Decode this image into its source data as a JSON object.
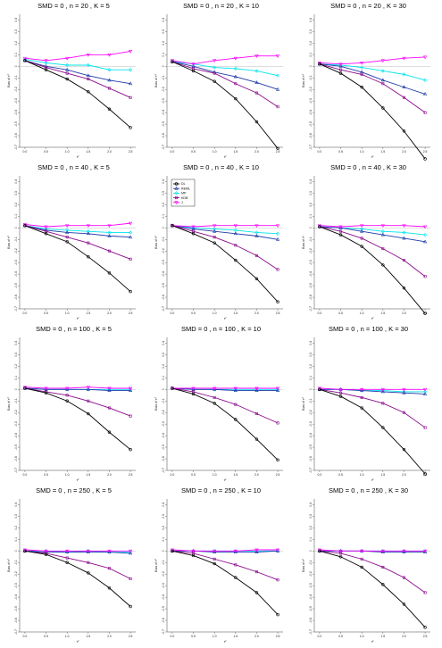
{
  "figure": {
    "ylabel": "Bias of τ²",
    "xlabel": "τ²",
    "x_ticks": [
      "0.0",
      "0.5",
      "1.0",
      "1.5",
      "2.0",
      "2.5"
    ],
    "y_ticks": [
      "0.4",
      "0.3",
      "0.2",
      "0.1",
      "0",
      "-0.1",
      "-0.2",
      "-0.3",
      "-0.4",
      "-0.5",
      "-0.6",
      "-0.7"
    ]
  },
  "legend": [
    {
      "name": "DL",
      "color": "#000000",
      "marker": "circle"
    },
    {
      "name": "REML",
      "color": "#1f3aa8",
      "marker": "triangle-up"
    },
    {
      "name": "MP",
      "color": "#00e5ee",
      "marker": "diamond"
    },
    {
      "name": "KDB",
      "color": "#8a0a8a",
      "marker": "square"
    },
    {
      "name": "J",
      "color": "#ff00ff",
      "marker": "triangle-down"
    }
  ],
  "chart_data": [
    {
      "type": "line",
      "title": "SMD = 0 , n = 20 , K = 5",
      "x": [
        0,
        0.5,
        1,
        1.5,
        2,
        2.5
      ],
      "ylim": [
        -0.7,
        0.45
      ],
      "series": [
        {
          "name": "DL",
          "values": [
            0.05,
            -0.03,
            -0.11,
            -0.22,
            -0.37,
            -0.53
          ]
        },
        {
          "name": "REML",
          "values": [
            0.05,
            0,
            -0.03,
            -0.08,
            -0.12,
            -0.15
          ]
        },
        {
          "name": "MP",
          "values": [
            0.06,
            0.03,
            0.01,
            0.01,
            -0.03,
            -0.03
          ]
        },
        {
          "name": "KDB",
          "values": [
            0.05,
            -0.01,
            -0.06,
            -0.11,
            -0.19,
            -0.27
          ]
        },
        {
          "name": "J",
          "values": [
            0.07,
            0.05,
            0.07,
            0.1,
            0.1,
            0.13
          ]
        }
      ]
    },
    {
      "type": "line",
      "title": "SMD = 0 , n = 20 , K = 10",
      "x": [
        0,
        0.5,
        1,
        1.5,
        2,
        2.5
      ],
      "ylim": [
        -0.7,
        0.45
      ],
      "series": [
        {
          "name": "DL",
          "values": [
            0.04,
            -0.04,
            -0.13,
            -0.28,
            -0.48,
            -0.71
          ]
        },
        {
          "name": "REML",
          "values": [
            0.04,
            0,
            -0.05,
            -0.09,
            -0.14,
            -0.2
          ]
        },
        {
          "name": "MP",
          "values": [
            0.04,
            0.02,
            -0.01,
            -0.02,
            -0.04,
            -0.08
          ]
        },
        {
          "name": "KDB",
          "values": [
            0.04,
            -0.02,
            -0.06,
            -0.15,
            -0.23,
            -0.35
          ]
        },
        {
          "name": "J",
          "values": [
            0.05,
            0.02,
            0.05,
            0.07,
            0.09,
            0.09
          ]
        }
      ]
    },
    {
      "type": "line",
      "title": "SMD = 0 , n = 20 , K = 30",
      "x": [
        0,
        0.5,
        1,
        1.5,
        2,
        2.5
      ],
      "ylim": [
        -0.7,
        0.45
      ],
      "series": [
        {
          "name": "DL",
          "values": [
            0.02,
            -0.06,
            -0.18,
            -0.36,
            -0.56,
            -0.8
          ]
        },
        {
          "name": "REML",
          "values": [
            0.02,
            0,
            -0.05,
            -0.12,
            -0.18,
            -0.24
          ]
        },
        {
          "name": "MP",
          "values": [
            0.02,
            0.01,
            -0.01,
            -0.04,
            -0.07,
            -0.12
          ]
        },
        {
          "name": "KDB",
          "values": [
            0.02,
            -0.03,
            -0.07,
            -0.15,
            -0.27,
            -0.4
          ]
        },
        {
          "name": "J",
          "values": [
            0.03,
            0.02,
            0.03,
            0.05,
            0.07,
            0.08
          ]
        }
      ]
    },
    {
      "type": "line",
      "title": "SMD = 0 , n = 40 , K = 5",
      "x": [
        0,
        0.5,
        1,
        1.5,
        2,
        2.5
      ],
      "ylim": [
        -0.7,
        0.45
      ],
      "series": [
        {
          "name": "DL",
          "values": [
            0.02,
            -0.05,
            -0.12,
            -0.25,
            -0.39,
            -0.55
          ]
        },
        {
          "name": "REML",
          "values": [
            0.02,
            -0.02,
            -0.04,
            -0.05,
            -0.07,
            -0.08
          ]
        },
        {
          "name": "MP",
          "values": [
            0.02,
            -0.01,
            -0.02,
            -0.03,
            -0.04,
            -0.04
          ]
        },
        {
          "name": "KDB",
          "values": [
            0.02,
            -0.03,
            -0.08,
            -0.13,
            -0.2,
            -0.27
          ]
        },
        {
          "name": "J",
          "values": [
            0.03,
            0.01,
            0.02,
            0.02,
            0.02,
            0.04
          ]
        }
      ]
    },
    {
      "type": "line",
      "title": "SMD = 0 , n = 40 , K = 10",
      "x": [
        0,
        0.5,
        1,
        1.5,
        2,
        2.5
      ],
      "ylim": [
        -0.7,
        0.45
      ],
      "series": [
        {
          "name": "DL",
          "values": [
            0.02,
            -0.05,
            -0.13,
            -0.28,
            -0.44,
            -0.64
          ]
        },
        {
          "name": "REML",
          "values": [
            0.02,
            -0.01,
            -0.03,
            -0.05,
            -0.07,
            -0.1
          ]
        },
        {
          "name": "MP",
          "values": [
            0.02,
            0,
            -0.01,
            -0.02,
            -0.04,
            -0.05
          ]
        },
        {
          "name": "KDB",
          "values": [
            0.02,
            -0.03,
            -0.08,
            -0.15,
            -0.24,
            -0.36
          ]
        },
        {
          "name": "J",
          "values": [
            0.02,
            0.01,
            0.02,
            0.02,
            0.02,
            0.02
          ]
        }
      ]
    },
    {
      "type": "line",
      "title": "SMD = 0 , n = 40 , K = 30",
      "x": [
        0,
        0.5,
        1,
        1.5,
        2,
        2.5
      ],
      "ylim": [
        -0.7,
        0.45
      ],
      "series": [
        {
          "name": "DL",
          "values": [
            0.01,
            -0.06,
            -0.16,
            -0.32,
            -0.52,
            -0.74
          ]
        },
        {
          "name": "REML",
          "values": [
            0.01,
            0,
            -0.03,
            -0.06,
            -0.09,
            -0.12
          ]
        },
        {
          "name": "MP",
          "values": [
            0.01,
            0,
            -0.01,
            -0.03,
            -0.04,
            -0.06
          ]
        },
        {
          "name": "KDB",
          "values": [
            0.01,
            -0.03,
            -0.09,
            -0.18,
            -0.28,
            -0.42
          ]
        },
        {
          "name": "J",
          "values": [
            0.02,
            0.01,
            0.02,
            0.02,
            0.02,
            0.01
          ]
        }
      ]
    },
    {
      "type": "line",
      "title": "SMD = 0 , n = 100 , K = 5",
      "x": [
        0,
        0.5,
        1,
        1.5,
        2,
        2.5
      ],
      "ylim": [
        -0.7,
        0.45
      ],
      "series": [
        {
          "name": "DL",
          "values": [
            0.01,
            -0.03,
            -0.1,
            -0.21,
            -0.37,
            -0.52
          ]
        },
        {
          "name": "REML",
          "values": [
            0.01,
            0,
            0,
            0,
            -0.01,
            -0.01
          ]
        },
        {
          "name": "MP",
          "values": [
            0.01,
            0,
            0,
            0,
            0,
            0
          ]
        },
        {
          "name": "KDB",
          "values": [
            0.01,
            -0.02,
            -0.05,
            -0.1,
            -0.16,
            -0.23
          ]
        },
        {
          "name": "J",
          "values": [
            0.02,
            0.01,
            0.01,
            0.02,
            0.01,
            0.01
          ]
        }
      ]
    },
    {
      "type": "line",
      "title": "SMD = 0 , n = 100 , K = 10",
      "x": [
        0,
        0.5,
        1,
        1.5,
        2,
        2.5
      ],
      "ylim": [
        -0.7,
        0.45
      ],
      "series": [
        {
          "name": "DL",
          "values": [
            0.01,
            -0.04,
            -0.12,
            -0.26,
            -0.43,
            -0.61
          ]
        },
        {
          "name": "REML",
          "values": [
            0.01,
            0,
            0,
            -0.01,
            -0.01,
            -0.01
          ]
        },
        {
          "name": "MP",
          "values": [
            0.01,
            0,
            0,
            0,
            0,
            0
          ]
        },
        {
          "name": "KDB",
          "values": [
            0.01,
            -0.02,
            -0.07,
            -0.13,
            -0.21,
            -0.29
          ]
        },
        {
          "name": "J",
          "values": [
            0.01,
            0.01,
            0.01,
            0.01,
            0.01,
            0.01
          ]
        }
      ]
    },
    {
      "type": "line",
      "title": "SMD = 0 , n = 100 , K = 30",
      "x": [
        0,
        0.5,
        1,
        1.5,
        2,
        2.5
      ],
      "ylim": [
        -0.7,
        0.45
      ],
      "series": [
        {
          "name": "DL",
          "values": [
            0,
            -0.06,
            -0.16,
            -0.33,
            -0.52,
            -0.73
          ]
        },
        {
          "name": "REML",
          "values": [
            0,
            0,
            -0.01,
            -0.02,
            -0.03,
            -0.04
          ]
        },
        {
          "name": "MP",
          "values": [
            0,
            0,
            -0.01,
            -0.01,
            -0.02,
            -0.02
          ]
        },
        {
          "name": "KDB",
          "values": [
            0,
            -0.03,
            -0.07,
            -0.12,
            -0.2,
            -0.33
          ]
        },
        {
          "name": "J",
          "values": [
            0.01,
            0,
            0,
            0,
            0,
            0
          ]
        }
      ]
    },
    {
      "type": "line",
      "title": "SMD = 0 , n = 250 , K = 5",
      "x": [
        0,
        0.5,
        1,
        1.5,
        2,
        2.5
      ],
      "ylim": [
        -0.7,
        0.45
      ],
      "series": [
        {
          "name": "DL",
          "values": [
            0,
            -0.03,
            -0.1,
            -0.19,
            -0.32,
            -0.48
          ]
        },
        {
          "name": "REML",
          "values": [
            0,
            -0.01,
            -0.01,
            -0.01,
            -0.01,
            -0.02
          ]
        },
        {
          "name": "MP",
          "values": [
            0,
            0,
            -0.01,
            0,
            -0.01,
            -0.01
          ]
        },
        {
          "name": "KDB",
          "values": [
            0,
            -0.02,
            -0.06,
            -0.1,
            -0.15,
            -0.24
          ]
        },
        {
          "name": "J",
          "values": [
            0.01,
            0,
            0,
            0,
            0,
            0
          ]
        }
      ]
    },
    {
      "type": "line",
      "title": "SMD = 0 , n = 250 , K = 10",
      "x": [
        0,
        0.5,
        1,
        1.5,
        2,
        2.5
      ],
      "ylim": [
        -0.7,
        0.45
      ],
      "series": [
        {
          "name": "DL",
          "values": [
            0,
            -0.04,
            -0.11,
            -0.23,
            -0.36,
            -0.55
          ]
        },
        {
          "name": "REML",
          "values": [
            0,
            0,
            -0.01,
            -0.01,
            -0.01,
            0
          ]
        },
        {
          "name": "MP",
          "values": [
            0,
            0,
            0,
            0,
            0,
            0
          ]
        },
        {
          "name": "KDB",
          "values": [
            0,
            -0.02,
            -0.07,
            -0.12,
            -0.18,
            -0.25
          ]
        },
        {
          "name": "J",
          "values": [
            0.01,
            0,
            0,
            0,
            0.01,
            0.01
          ]
        }
      ]
    },
    {
      "type": "line",
      "title": "SMD = 0 , n = 250 , K = 30",
      "x": [
        0,
        0.5,
        1,
        1.5,
        2,
        2.5
      ],
      "ylim": [
        -0.7,
        0.45
      ],
      "series": [
        {
          "name": "DL",
          "values": [
            0,
            -0.05,
            -0.14,
            -0.29,
            -0.46,
            -0.66
          ]
        },
        {
          "name": "REML",
          "values": [
            0,
            0,
            0,
            -0.01,
            -0.01,
            -0.01
          ]
        },
        {
          "name": "MP",
          "values": [
            0,
            0,
            0,
            0,
            0,
            0
          ]
        },
        {
          "name": "KDB",
          "values": [
            0,
            -0.02,
            -0.07,
            -0.14,
            -0.23,
            -0.36
          ]
        },
        {
          "name": "J",
          "values": [
            0.01,
            0,
            0,
            0,
            0,
            0
          ]
        }
      ]
    }
  ]
}
